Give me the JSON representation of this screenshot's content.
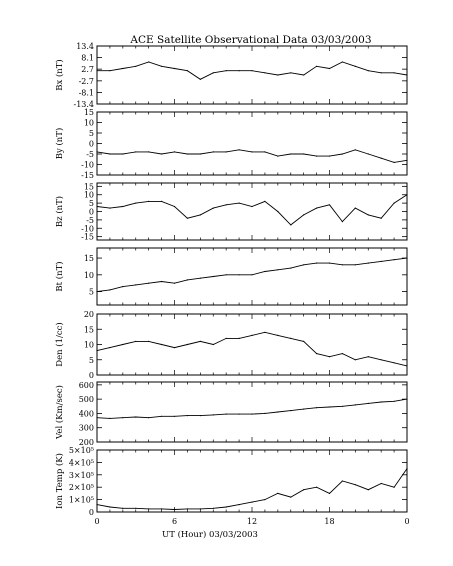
{
  "chart_data": {
    "type": "line",
    "title": "ACE Satellite Observational Data   03/03/2003",
    "xlabel": "UT (Hour)   03/03/2003",
    "x_ticks": [
      "0",
      "6",
      "12",
      "18",
      "0"
    ],
    "xlim": [
      0,
      24
    ],
    "grid": false,
    "panels": [
      {
        "ylabel": "Bx (nT)",
        "ylim": [
          -13.4,
          13.4
        ],
        "yticks": [
          13.4,
          8.1,
          2.7,
          -2.7,
          -8.1,
          -13.4
        ],
        "ytick_labels": [
          "13.4",
          "8.1",
          "2.7",
          "-2.7",
          "-8.1",
          "-13.4"
        ],
        "series": [
          {
            "x": [
              0,
              1,
              2,
              3,
              4,
              5,
              6,
              7,
              8,
              9,
              10,
              11,
              12,
              13,
              14,
              15,
              16,
              17,
              18,
              19,
              20,
              21,
              22,
              23,
              24
            ],
            "y": [
              2,
              2,
              3,
              4,
              6,
              4,
              3,
              2,
              -2,
              1,
              2,
              2,
              2,
              1,
              0,
              1,
              0,
              4,
              3,
              6,
              4,
              2,
              1,
              1,
              0
            ]
          }
        ]
      },
      {
        "ylabel": "By (nT)",
        "ylim": [
          -15,
          15
        ],
        "yticks": [
          15,
          10,
          5,
          0,
          -5,
          -10,
          -15
        ],
        "ytick_labels": [
          "15",
          "10",
          "5",
          "0",
          "-5",
          "-10",
          "-15"
        ],
        "series": [
          {
            "x": [
              0,
              1,
              2,
              3,
              4,
              5,
              6,
              7,
              8,
              9,
              10,
              11,
              12,
              13,
              14,
              15,
              16,
              17,
              18,
              19,
              20,
              21,
              22,
              23,
              24
            ],
            "y": [
              -4,
              -5,
              -5,
              -4,
              -4,
              -5,
              -4,
              -5,
              -5,
              -4,
              -4,
              -3,
              -4,
              -4,
              -6,
              -5,
              -5,
              -6,
              -6,
              -5,
              -3,
              -5,
              -7,
              -9,
              -8
            ]
          }
        ]
      },
      {
        "ylabel": "Bz (nT)",
        "ylim": [
          -17,
          17
        ],
        "yticks": [
          15,
          10,
          5,
          0,
          -5,
          -10,
          -15
        ],
        "ytick_labels": [
          "15",
          "10",
          "5",
          "0",
          "-5",
          "-10",
          "-15"
        ],
        "series": [
          {
            "x": [
              0,
              1,
              2,
              3,
              4,
              5,
              6,
              7,
              8,
              9,
              10,
              11,
              12,
              13,
              14,
              15,
              16,
              17,
              18,
              19,
              20,
              21,
              22,
              23,
              24
            ],
            "y": [
              3,
              2,
              3,
              5,
              6,
              6,
              3,
              -4,
              -2,
              2,
              4,
              5,
              3,
              6,
              0,
              -8,
              -2,
              2,
              4,
              -6,
              2,
              -2,
              -4,
              5,
              10
            ]
          }
        ]
      },
      {
        "ylabel": "Bt (nT)",
        "ylim": [
          1,
          18
        ],
        "yticks": [
          15,
          10,
          5
        ],
        "ytick_labels": [
          "15",
          "10",
          "5"
        ],
        "series": [
          {
            "x": [
              0,
              1,
              2,
              3,
              4,
              5,
              6,
              7,
              8,
              9,
              10,
              11,
              12,
              13,
              14,
              15,
              16,
              17,
              18,
              19,
              20,
              21,
              22,
              23,
              24
            ],
            "y": [
              5,
              5.5,
              6.5,
              7,
              7.5,
              8,
              7.5,
              8.5,
              9,
              9.5,
              10,
              10,
              10,
              11,
              11.5,
              12,
              13,
              13.5,
              13.5,
              13,
              13,
              13.5,
              14,
              14.5,
              15
            ]
          }
        ]
      },
      {
        "ylabel": "Den (1/cc)",
        "ylim": [
          0,
          20
        ],
        "yticks": [
          20,
          15,
          10,
          5,
          0
        ],
        "ytick_labels": [
          "20",
          "15",
          "10",
          "5",
          "0"
        ],
        "series": [
          {
            "x": [
              0,
              1,
              2,
              3,
              4,
              5,
              6,
              7,
              8,
              9,
              10,
              11,
              12,
              13,
              14,
              15,
              16,
              17,
              18,
              19,
              20,
              21,
              22,
              23,
              24
            ],
            "y": [
              8,
              9,
              10,
              11,
              11,
              10,
              9,
              10,
              11,
              10,
              12,
              12,
              13,
              14,
              13,
              12,
              11,
              7,
              6,
              7,
              5,
              6,
              5,
              4,
              3
            ]
          }
        ]
      },
      {
        "ylabel": "Vel (Km/sec)",
        "ylim": [
          200,
          620
        ],
        "yticks": [
          600,
          500,
          400,
          300,
          200
        ],
        "ytick_labels": [
          "600",
          "500",
          "400",
          "300",
          "200"
        ],
        "series": [
          {
            "x": [
              0,
              1,
              2,
              3,
              4,
              5,
              6,
              7,
              8,
              9,
              10,
              11,
              12,
              13,
              14,
              15,
              16,
              17,
              18,
              19,
              20,
              21,
              22,
              23,
              24
            ],
            "y": [
              370,
              365,
              370,
              375,
              370,
              380,
              380,
              385,
              385,
              390,
              395,
              395,
              395,
              400,
              410,
              420,
              430,
              440,
              445,
              450,
              460,
              470,
              480,
              485,
              500
            ]
          }
        ]
      },
      {
        "ylabel": "Ion Temp (K)",
        "ylim": [
          0,
          500000
        ],
        "yticks": [
          500000,
          400000,
          300000,
          200000,
          100000,
          0
        ],
        "ytick_labels": [
          "5×10⁵",
          "4×10⁵",
          "3×10⁵",
          "2×10⁵",
          "1×10⁵",
          "0"
        ],
        "series": [
          {
            "x": [
              0,
              1,
              2,
              3,
              4,
              5,
              6,
              7,
              8,
              9,
              10,
              11,
              12,
              13,
              14,
              15,
              16,
              17,
              18,
              19,
              20,
              21,
              22,
              23,
              24
            ],
            "y": [
              60000,
              40000,
              30000,
              30000,
              25000,
              25000,
              20000,
              25000,
              25000,
              30000,
              40000,
              60000,
              80000,
              100000,
              150000,
              120000,
              180000,
              200000,
              150000,
              250000,
              220000,
              180000,
              230000,
              200000,
              350000
            ]
          }
        ]
      }
    ]
  }
}
